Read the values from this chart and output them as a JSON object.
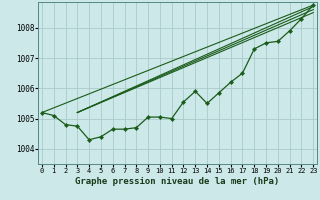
{
  "title": "Graphe pression niveau de la mer (hPa)",
  "bg_color": "#cce8e8",
  "plot_bg_color": "#cce8e8",
  "grid_color": "#aacaca",
  "line_color": "#1a5c1a",
  "marker_color": "#1a5c1a",
  "ylim": [
    1003.5,
    1008.85
  ],
  "xlim": [
    -0.3,
    23.3
  ],
  "yticks": [
    1004,
    1005,
    1006,
    1007,
    1008
  ],
  "xticks": [
    0,
    1,
    2,
    3,
    4,
    5,
    6,
    7,
    8,
    9,
    10,
    11,
    12,
    13,
    14,
    15,
    16,
    17,
    18,
    19,
    20,
    21,
    22,
    23
  ],
  "main_data": [
    1005.2,
    1005.1,
    1004.8,
    1004.75,
    1004.3,
    1004.4,
    1004.65,
    1004.65,
    1004.7,
    1005.05,
    1005.05,
    1005.0,
    1005.55,
    1005.9,
    1005.5,
    1005.85,
    1006.2,
    1006.5,
    1007.3,
    1007.5,
    1007.55,
    1007.9,
    1008.3,
    1008.75
  ],
  "straight_lines": [
    {
      "x0": 0,
      "x1": 23,
      "y0": 1005.2,
      "y1": 1008.75
    },
    {
      "x0": 3,
      "x1": 23,
      "y0": 1005.2,
      "y1": 1008.7
    },
    {
      "x0": 3,
      "x1": 23,
      "y0": 1005.2,
      "y1": 1008.6
    },
    {
      "x0": 3,
      "x1": 23,
      "y0": 1005.2,
      "y1": 1008.5
    }
  ],
  "straight_line_color": "#1a5c1a",
  "tick_fontsize": 5.5,
  "xlabel_fontsize": 6.5
}
